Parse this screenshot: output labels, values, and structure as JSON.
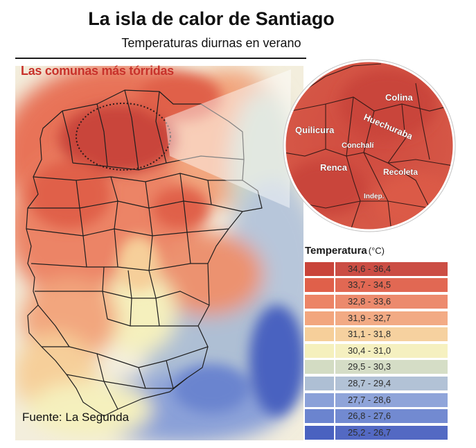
{
  "title": "La isla de calor de Santiago",
  "subtitle": "Temperaturas diurnas en verano",
  "map_heading": "Las comunas más tórridas",
  "inset_labels": [
    "Colina",
    "Quilicura",
    "Huechuraba",
    "Conchalí",
    "Renca",
    "Recoleta",
    "Indep."
  ],
  "legend": {
    "title": "Temperatura",
    "unit": "(°C)",
    "items": [
      {
        "range": "34,6  -  36,4",
        "color": "#c9443a"
      },
      {
        "range": "33,7  -  34,5",
        "color": "#e0604a"
      },
      {
        "range": "32,8  -  33,6",
        "color": "#ec8466"
      },
      {
        "range": "31,9  -  32,7",
        "color": "#f2a67e"
      },
      {
        "range": "31,1  -  31,8",
        "color": "#f6cf9a"
      },
      {
        "range": "30,4  -  31,0",
        "color": "#f5f0bd"
      },
      {
        "range": "29,5  -  30,3",
        "color": "#d3dcc3"
      },
      {
        "range": "28,7  -  29,4",
        "color": "#aebfd4"
      },
      {
        "range": "27,7  -  28,6",
        "color": "#8aa0d8"
      },
      {
        "range": "26,8  -  27,6",
        "color": "#6b84cf"
      },
      {
        "range": "25,2  -  26,7",
        "color": "#4a62c0"
      }
    ]
  },
  "source": "Fuente: La Segunda"
}
